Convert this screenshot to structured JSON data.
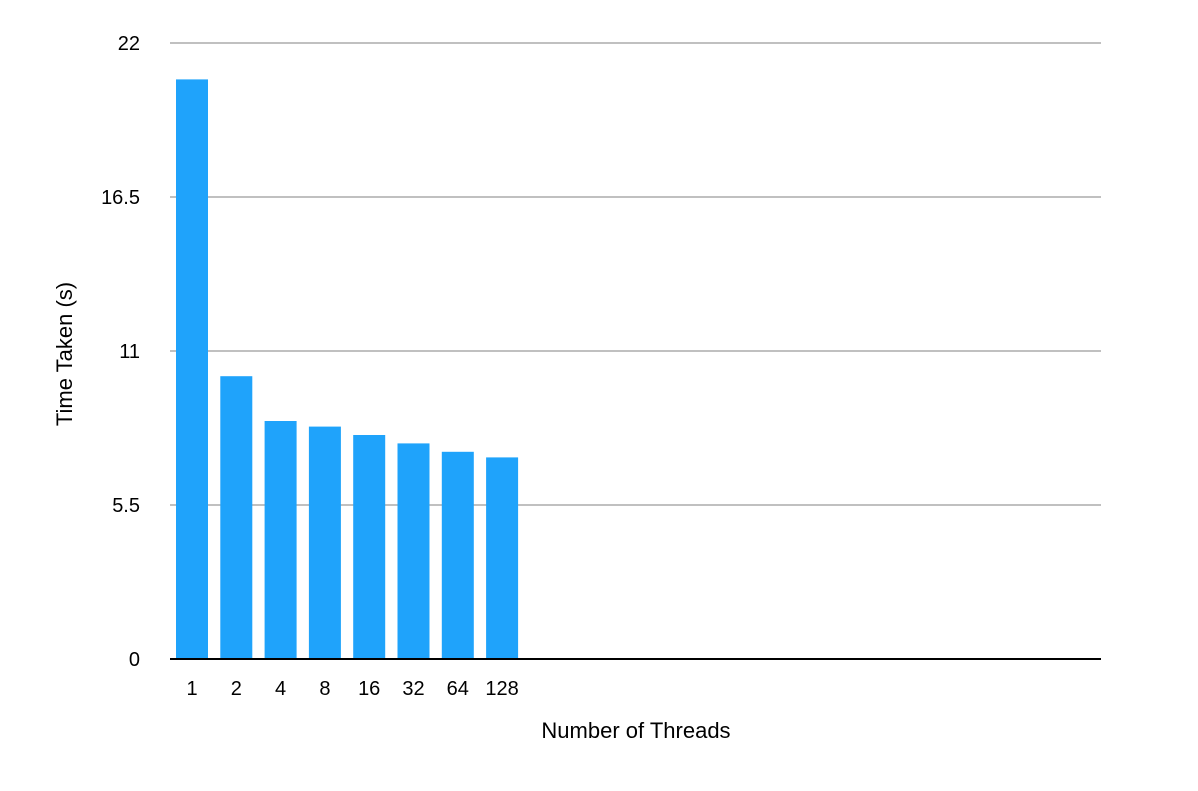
{
  "chart_data": {
    "type": "bar",
    "title": "",
    "xlabel": "Number of Threads",
    "ylabel": "Time Taken (s)",
    "categories": [
      "1",
      "2",
      "4",
      "8",
      "16",
      "32",
      "64",
      "128"
    ],
    "values": [
      20.7,
      10.1,
      8.5,
      8.3,
      8.0,
      7.7,
      7.4,
      7.2
    ],
    "ylim": [
      0,
      22
    ],
    "yticks": [
      "0",
      "5.5",
      "11",
      "16.5",
      "22"
    ],
    "grid": true,
    "legend": "none",
    "bar_color": "#1fa3fb",
    "grid_color": "#c0c0c0",
    "axis_color": "#000000"
  }
}
